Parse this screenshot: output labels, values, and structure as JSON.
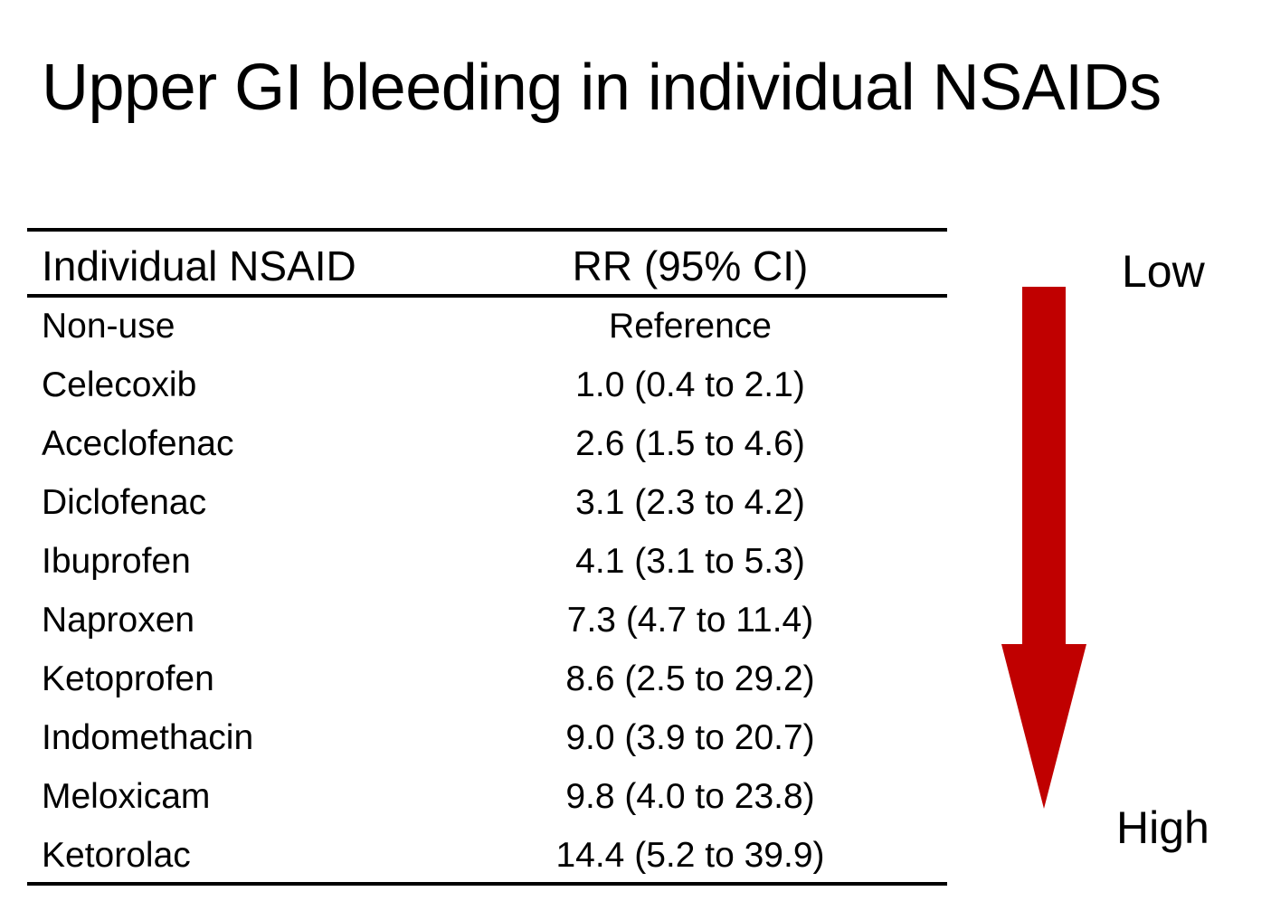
{
  "title": "Upper GI bleeding in individual NSAIDs",
  "table": {
    "headers": {
      "drug": "Individual NSAID",
      "rr": "RR (95% CI)"
    },
    "rows": [
      {
        "drug": "Non-use",
        "rr": "Reference"
      },
      {
        "drug": "Celecoxib",
        "rr": "1.0 (0.4 to 2.1)"
      },
      {
        "drug": "Aceclofenac",
        "rr": "2.6 (1.5 to 4.6)"
      },
      {
        "drug": "Diclofenac",
        "rr": "3.1 (2.3 to 4.2)"
      },
      {
        "drug": "Ibuprofen",
        "rr": "4.1 (3.1 to 5.3)"
      },
      {
        "drug": "Naproxen",
        "rr": "7.3 (4.7 to 11.4)"
      },
      {
        "drug": "Ketoprofen",
        "rr": "8.6 (2.5 to 29.2)"
      },
      {
        "drug": "Indomethacin",
        "rr": "9.0 (3.9 to 20.7)"
      },
      {
        "drug": "Meloxicam",
        "rr": "9.8 (4.0 to 23.8)"
      },
      {
        "drug": "Ketorolac",
        "rr": "14.4 (5.2 to 39.9)"
      }
    ]
  },
  "scale": {
    "low_label": "Low",
    "high_label": "High",
    "arrow_icon": "down-arrow-icon",
    "arrow_color": "#c00000"
  }
}
